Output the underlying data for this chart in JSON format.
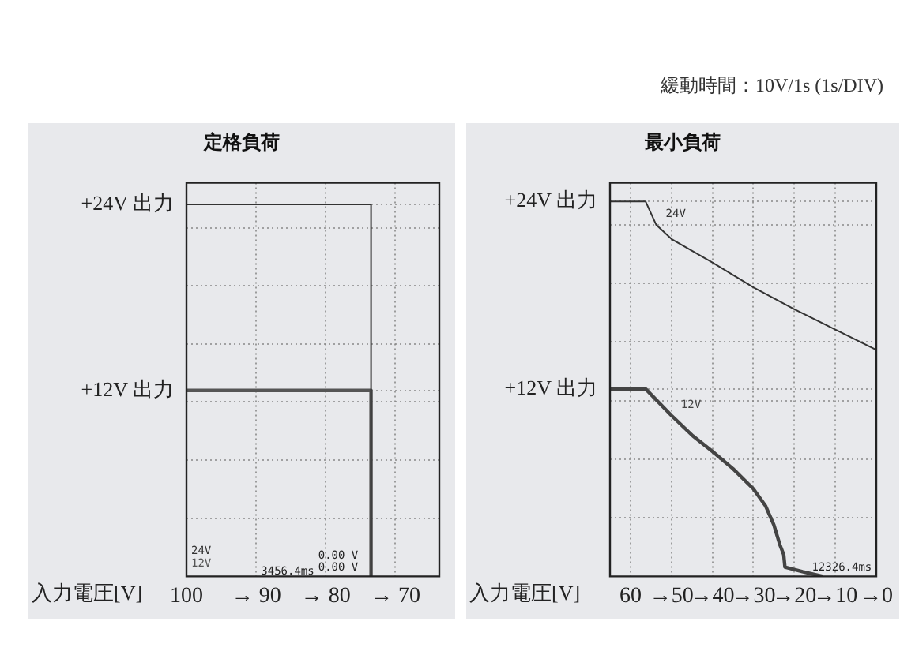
{
  "chart_data": [
    {
      "type": "line",
      "title": "定格負荷",
      "xlabel": "入力電圧[V]",
      "xlim": [
        100,
        63.7
      ],
      "ylim": [
        0,
        25.4
      ],
      "xticks": [
        {
          "value": 100,
          "label": "100"
        },
        {
          "value": 90,
          "label": "→ 90"
        },
        {
          "value": 80,
          "label": "→ 80"
        },
        {
          "value": 70,
          "label": "→ 70"
        }
      ],
      "yticks": [
        {
          "value": 3.75,
          "label": null
        },
        {
          "value": 7.5,
          "label": null
        },
        {
          "value": 11.25,
          "label": null
        },
        {
          "value": 12,
          "label": "+12V 出力"
        },
        {
          "value": 15,
          "label": null
        },
        {
          "value": 18.75,
          "label": null
        },
        {
          "value": 22.5,
          "label": null
        },
        {
          "value": 24,
          "label": "+24V 出力"
        }
      ],
      "grid": true,
      "legend": false,
      "marker": "none",
      "line_style": "solid",
      "series": [
        {
          "name": "24V",
          "color": "#333333",
          "x": [
            100,
            73.5,
            73.5
          ],
          "values": [
            24,
            24,
            0
          ]
        },
        {
          "name": "12V",
          "color": "#555555",
          "x": [
            100,
            73.5,
            73.5
          ],
          "values": [
            12,
            12,
            0
          ]
        }
      ],
      "annotations": [
        "3456.4ms",
        "0.00 V",
        "0.00 V"
      ]
    },
    {
      "type": "line",
      "title": "最小負荷",
      "subtitle": "緩動時間：10V/1s (1s/DIV)",
      "xlabel": "入力電圧[V]",
      "xlim": [
        65,
        0
      ],
      "ylim": [
        0,
        25.2
      ],
      "xticks": [
        {
          "value": 60,
          "label": "60"
        },
        {
          "value": 50,
          "label": "→50"
        },
        {
          "value": 40,
          "label": "→40"
        },
        {
          "value": 30,
          "label": "→30"
        },
        {
          "value": 20,
          "label": "→20"
        },
        {
          "value": 10,
          "label": "→10"
        },
        {
          "value": 0,
          "label": "→0"
        }
      ],
      "yticks": [
        {
          "value": 3.75,
          "label": null
        },
        {
          "value": 7.5,
          "label": null
        },
        {
          "value": 11.25,
          "label": null
        },
        {
          "value": 12,
          "label": "+12V 出力"
        },
        {
          "value": 15,
          "label": null
        },
        {
          "value": 18.75,
          "label": null
        },
        {
          "value": 22.5,
          "label": null
        },
        {
          "value": 24,
          "label": "+24V 出力"
        }
      ],
      "grid": true,
      "legend": false,
      "marker": "none",
      "line_style": "solid",
      "series": [
        {
          "name": "24V",
          "color": "#333333",
          "x": [
            65,
            56.3,
            53.7,
            50,
            40,
            30,
            20,
            10,
            0
          ],
          "values": [
            24,
            24,
            22.5,
            21.6,
            20.1,
            18.5,
            17.1,
            15.8,
            14.5
          ]
        },
        {
          "name": "12V",
          "color": "#444444",
          "x": [
            65,
            56.3,
            50,
            44.8,
            40,
            35,
            30,
            27,
            25,
            23.5,
            22.6,
            22.3,
            18,
            13
          ],
          "values": [
            12,
            12,
            10.3,
            9.0,
            8.0,
            6.9,
            5.6,
            4.5,
            3.3,
            2.0,
            1.4,
            0.6,
            0.3,
            0
          ]
        }
      ],
      "annotations": [
        "12326.4ms"
      ]
    }
  ]
}
